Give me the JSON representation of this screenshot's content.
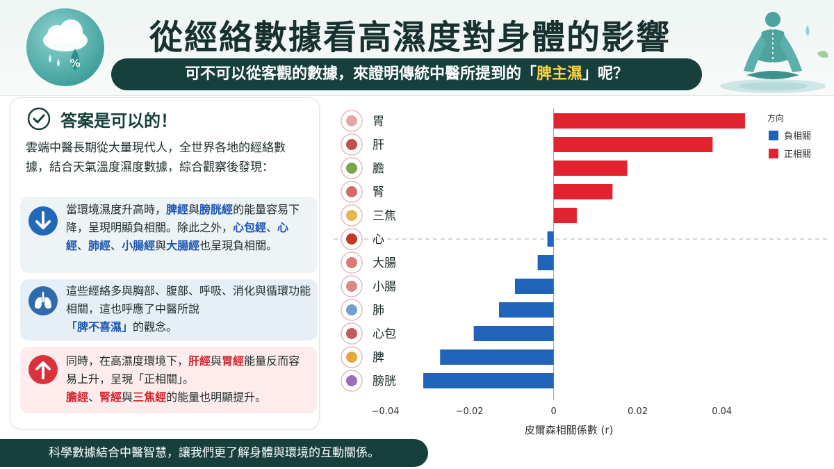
{
  "header": {
    "title": "從經絡數據看高濕度對身體的影響",
    "subtitle_pre": "可不可以從客觀的數據，來證明傳統中醫所提到的「",
    "subtitle_highlight": "脾主濕",
    "subtitle_post": "」呢？",
    "badge_text": "%"
  },
  "left": {
    "answer": "答案是可以的！",
    "intro": "雲端中醫長期從大量現代人，全世界各地的經絡數據，結合天氣溫度濕度數據，綜合觀察後發現：",
    "box1": {
      "t1": "當環境濕度升高時，",
      "k1": "脾經",
      "t2": "與",
      "k2": "膀胱經",
      "t3": "的能量容易下降，呈現明顯負相關。除此之外，",
      "k3": "心包經",
      "t4": "、",
      "k4": "心經",
      "t5": "、",
      "k5": "肺經",
      "t6": "、",
      "k6": "小腸經",
      "t7": "與",
      "k7": "大腸經",
      "t8": "也呈現負相關。"
    },
    "box2": {
      "t1": "這些經絡多與胸部、腹部、呼吸、消化與循環功能相關，這也呼應了中醫所說",
      "k1": "「脾不喜濕」",
      "t2": "的觀念。"
    },
    "box3": {
      "t1": "同時，在高濕度環境下，",
      "k1": "肝經",
      "t2": "與",
      "k2": "胃經",
      "t3": "能量反而容易上升，呈現「正相關」。",
      "k3": "膽經",
      "t4": "、",
      "k4": "腎經",
      "t5": "與",
      "k5": "三焦經",
      "t6": "的能量也明顯提升。"
    }
  },
  "footer": {
    "text": "科學數據結合中醫智慧，讓我們更了解身體與環境的互動關係。"
  },
  "colors": {
    "positive": "#e0232f",
    "negative": "#1f64b8",
    "dark_teal": "#17403d"
  },
  "chart_data": {
    "type": "bar",
    "orientation": "horizontal",
    "categories": [
      "胃",
      "肝",
      "膽",
      "腎",
      "三焦",
      "心",
      "大腸",
      "小腸",
      "肺",
      "心包",
      "脾",
      "膀胱"
    ],
    "icons": [
      "stomach-icon",
      "liver-icon",
      "gallbladder-icon",
      "kidney-icon",
      "triple-burner-icon",
      "heart-icon",
      "large-intestine-icon",
      "small-intestine-icon",
      "lung-icon",
      "pericardium-icon",
      "spleen-icon",
      "bladder-icon"
    ],
    "values": [
      0.0455,
      0.0378,
      0.0175,
      0.014,
      0.0055,
      -0.0015,
      -0.0038,
      -0.0092,
      -0.013,
      -0.019,
      -0.027,
      -0.031
    ],
    "series": [
      {
        "name": "負相關",
        "color": "#1f64b8"
      },
      {
        "name": "正相關",
        "color": "#e0232f"
      }
    ],
    "legend_title": "方向",
    "xlabel": "皮爾森相關係數 (r)",
    "xlim": [
      -0.0315,
      0.0465
    ],
    "xticks": [
      -0.04,
      -0.02,
      0,
      0.02,
      0.04
    ],
    "xtick_labels": [
      "−0.04",
      "−0.02",
      "0",
      "0.02",
      "0.04"
    ],
    "legend_position": "top-right",
    "grid": false
  }
}
